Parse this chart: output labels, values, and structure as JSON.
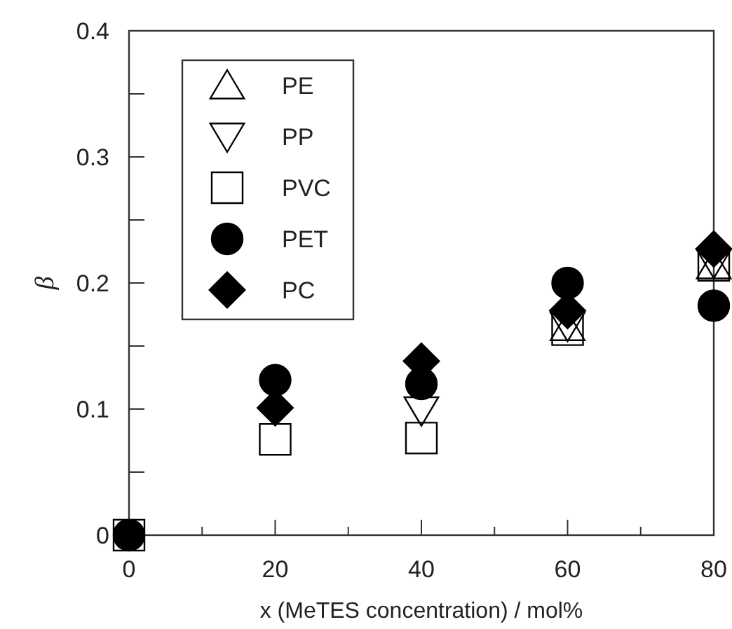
{
  "chart_data": {
    "type": "scatter",
    "xlabel": "x (MeTES concentration) / mol%",
    "ylabel": "β",
    "x": [
      0,
      20,
      40,
      60,
      80
    ],
    "xlim": [
      0,
      80
    ],
    "ylim": [
      0,
      0.4
    ],
    "xticks": [
      0,
      {
        "value": 10,
        "label": null
      },
      20,
      {
        "value": 30,
        "label": null
      },
      40,
      {
        "value": 50,
        "label": null
      },
      60,
      {
        "value": 70,
        "label": null
      },
      80
    ],
    "yticks": [
      0,
      {
        "value": 0.05,
        "label": null
      },
      0.1,
      {
        "value": 0.15,
        "label": null
      },
      0.2,
      {
        "value": 0.25,
        "label": null
      },
      0.3,
      {
        "value": 0.35,
        "label": null
      },
      0.4
    ],
    "legend": "top left",
    "grid": false,
    "series": [
      {
        "name": "PE",
        "color": "#000000",
        "marker": "triangle",
        "values": [
          null,
          null,
          null,
          0.165,
          0.214
        ]
      },
      {
        "name": "PP",
        "color": "#000000",
        "values": [
          null,
          null,
          0.099,
          0.166,
          0.216
        ]
      },
      {
        "name": "PVC",
        "color": "#000000",
        "marker": "square",
        "values": [
          0,
          0.076,
          0.077,
          0.163,
          0.214
        ]
      },
      {
        "name": "PET",
        "color": "#000000",
        "marker": "circle",
        "values": [
          0,
          0.123,
          0.12,
          0.2,
          0.182
        ]
      },
      {
        "name": "PC",
        "color": "#000000",
        "marker": "diamond",
        "values": [
          null,
          0.101,
          0.138,
          0.178,
          0.227
        ]
      }
    ]
  }
}
